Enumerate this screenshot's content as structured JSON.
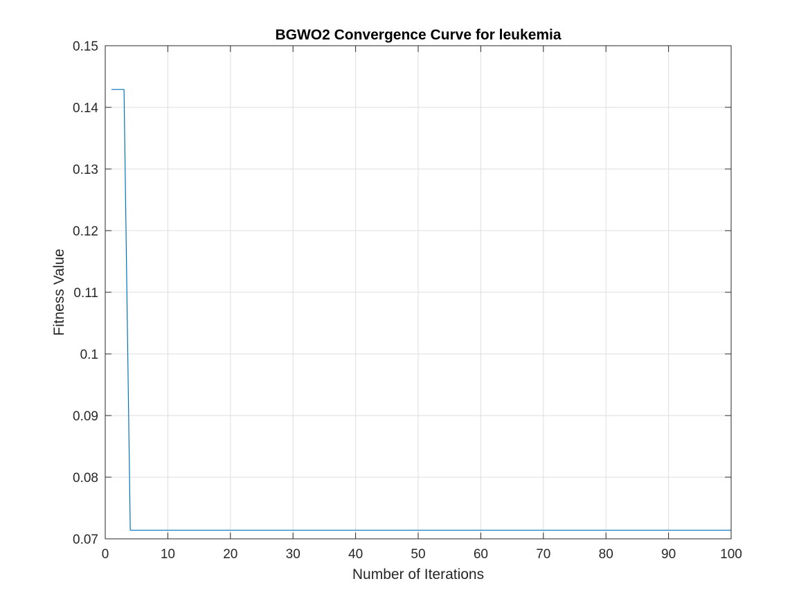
{
  "chart_data": {
    "type": "line",
    "title": "BGWO2 Convergence Curve for leukemia",
    "xlabel": "Number of Iterations",
    "ylabel": "Fitness Value",
    "xlim": [
      0,
      100
    ],
    "ylim": [
      0.07,
      0.15
    ],
    "xticks": [
      0,
      10,
      20,
      30,
      40,
      50,
      60,
      70,
      80,
      90,
      100
    ],
    "xtick_labels": [
      "0",
      "10",
      "20",
      "30",
      "40",
      "50",
      "60",
      "70",
      "80",
      "90",
      "100"
    ],
    "yticks": [
      0.07,
      0.08,
      0.09,
      0.1,
      0.11,
      0.12,
      0.13,
      0.14,
      0.15
    ],
    "ytick_labels": [
      "0.07",
      "0.08",
      "0.09",
      "0.1",
      "0.11",
      "0.12",
      "0.13",
      "0.14",
      "0.15"
    ],
    "grid": true,
    "box": true,
    "series": [
      {
        "color": "#0072BD",
        "x": [
          1,
          2,
          3,
          4,
          5,
          6,
          7,
          8,
          9,
          10,
          11,
          12,
          13,
          14,
          15,
          16,
          17,
          18,
          19,
          20,
          21,
          22,
          23,
          24,
          25,
          26,
          27,
          28,
          29,
          30,
          31,
          32,
          33,
          34,
          35,
          36,
          37,
          38,
          39,
          40,
          41,
          42,
          43,
          44,
          45,
          46,
          47,
          48,
          49,
          50,
          51,
          52,
          53,
          54,
          55,
          56,
          57,
          58,
          59,
          60,
          61,
          62,
          63,
          64,
          65,
          66,
          67,
          68,
          69,
          70,
          71,
          72,
          73,
          74,
          75,
          76,
          77,
          78,
          79,
          80,
          81,
          82,
          83,
          84,
          85,
          86,
          87,
          88,
          89,
          90,
          91,
          92,
          93,
          94,
          95,
          96,
          97,
          98,
          99,
          100
        ],
        "y": [
          0.1429,
          0.1429,
          0.1429,
          0.0714,
          0.0714,
          0.0714,
          0.0714,
          0.0714,
          0.0714,
          0.0714,
          0.0714,
          0.0714,
          0.0714,
          0.0714,
          0.0714,
          0.0714,
          0.0714,
          0.0714,
          0.0714,
          0.0714,
          0.0714,
          0.0714,
          0.0714,
          0.0714,
          0.0714,
          0.0714,
          0.0714,
          0.0714,
          0.0714,
          0.0714,
          0.0714,
          0.0714,
          0.0714,
          0.0714,
          0.0714,
          0.0714,
          0.0714,
          0.0714,
          0.0714,
          0.0714,
          0.0714,
          0.0714,
          0.0714,
          0.0714,
          0.0714,
          0.0714,
          0.0714,
          0.0714,
          0.0714,
          0.0714,
          0.0714,
          0.0714,
          0.0714,
          0.0714,
          0.0714,
          0.0714,
          0.0714,
          0.0714,
          0.0714,
          0.0714,
          0.0714,
          0.0714,
          0.0714,
          0.0714,
          0.0714,
          0.0714,
          0.0714,
          0.0714,
          0.0714,
          0.0714,
          0.0714,
          0.0714,
          0.0714,
          0.0714,
          0.0714,
          0.0714,
          0.0714,
          0.0714,
          0.0714,
          0.0714,
          0.0714,
          0.0714,
          0.0714,
          0.0714,
          0.0714,
          0.0714,
          0.0714,
          0.0714,
          0.0714,
          0.0714,
          0.0714,
          0.0714,
          0.0714,
          0.0714,
          0.0714,
          0.0714,
          0.0714,
          0.0714,
          0.0714,
          0.0714
        ]
      }
    ]
  }
}
